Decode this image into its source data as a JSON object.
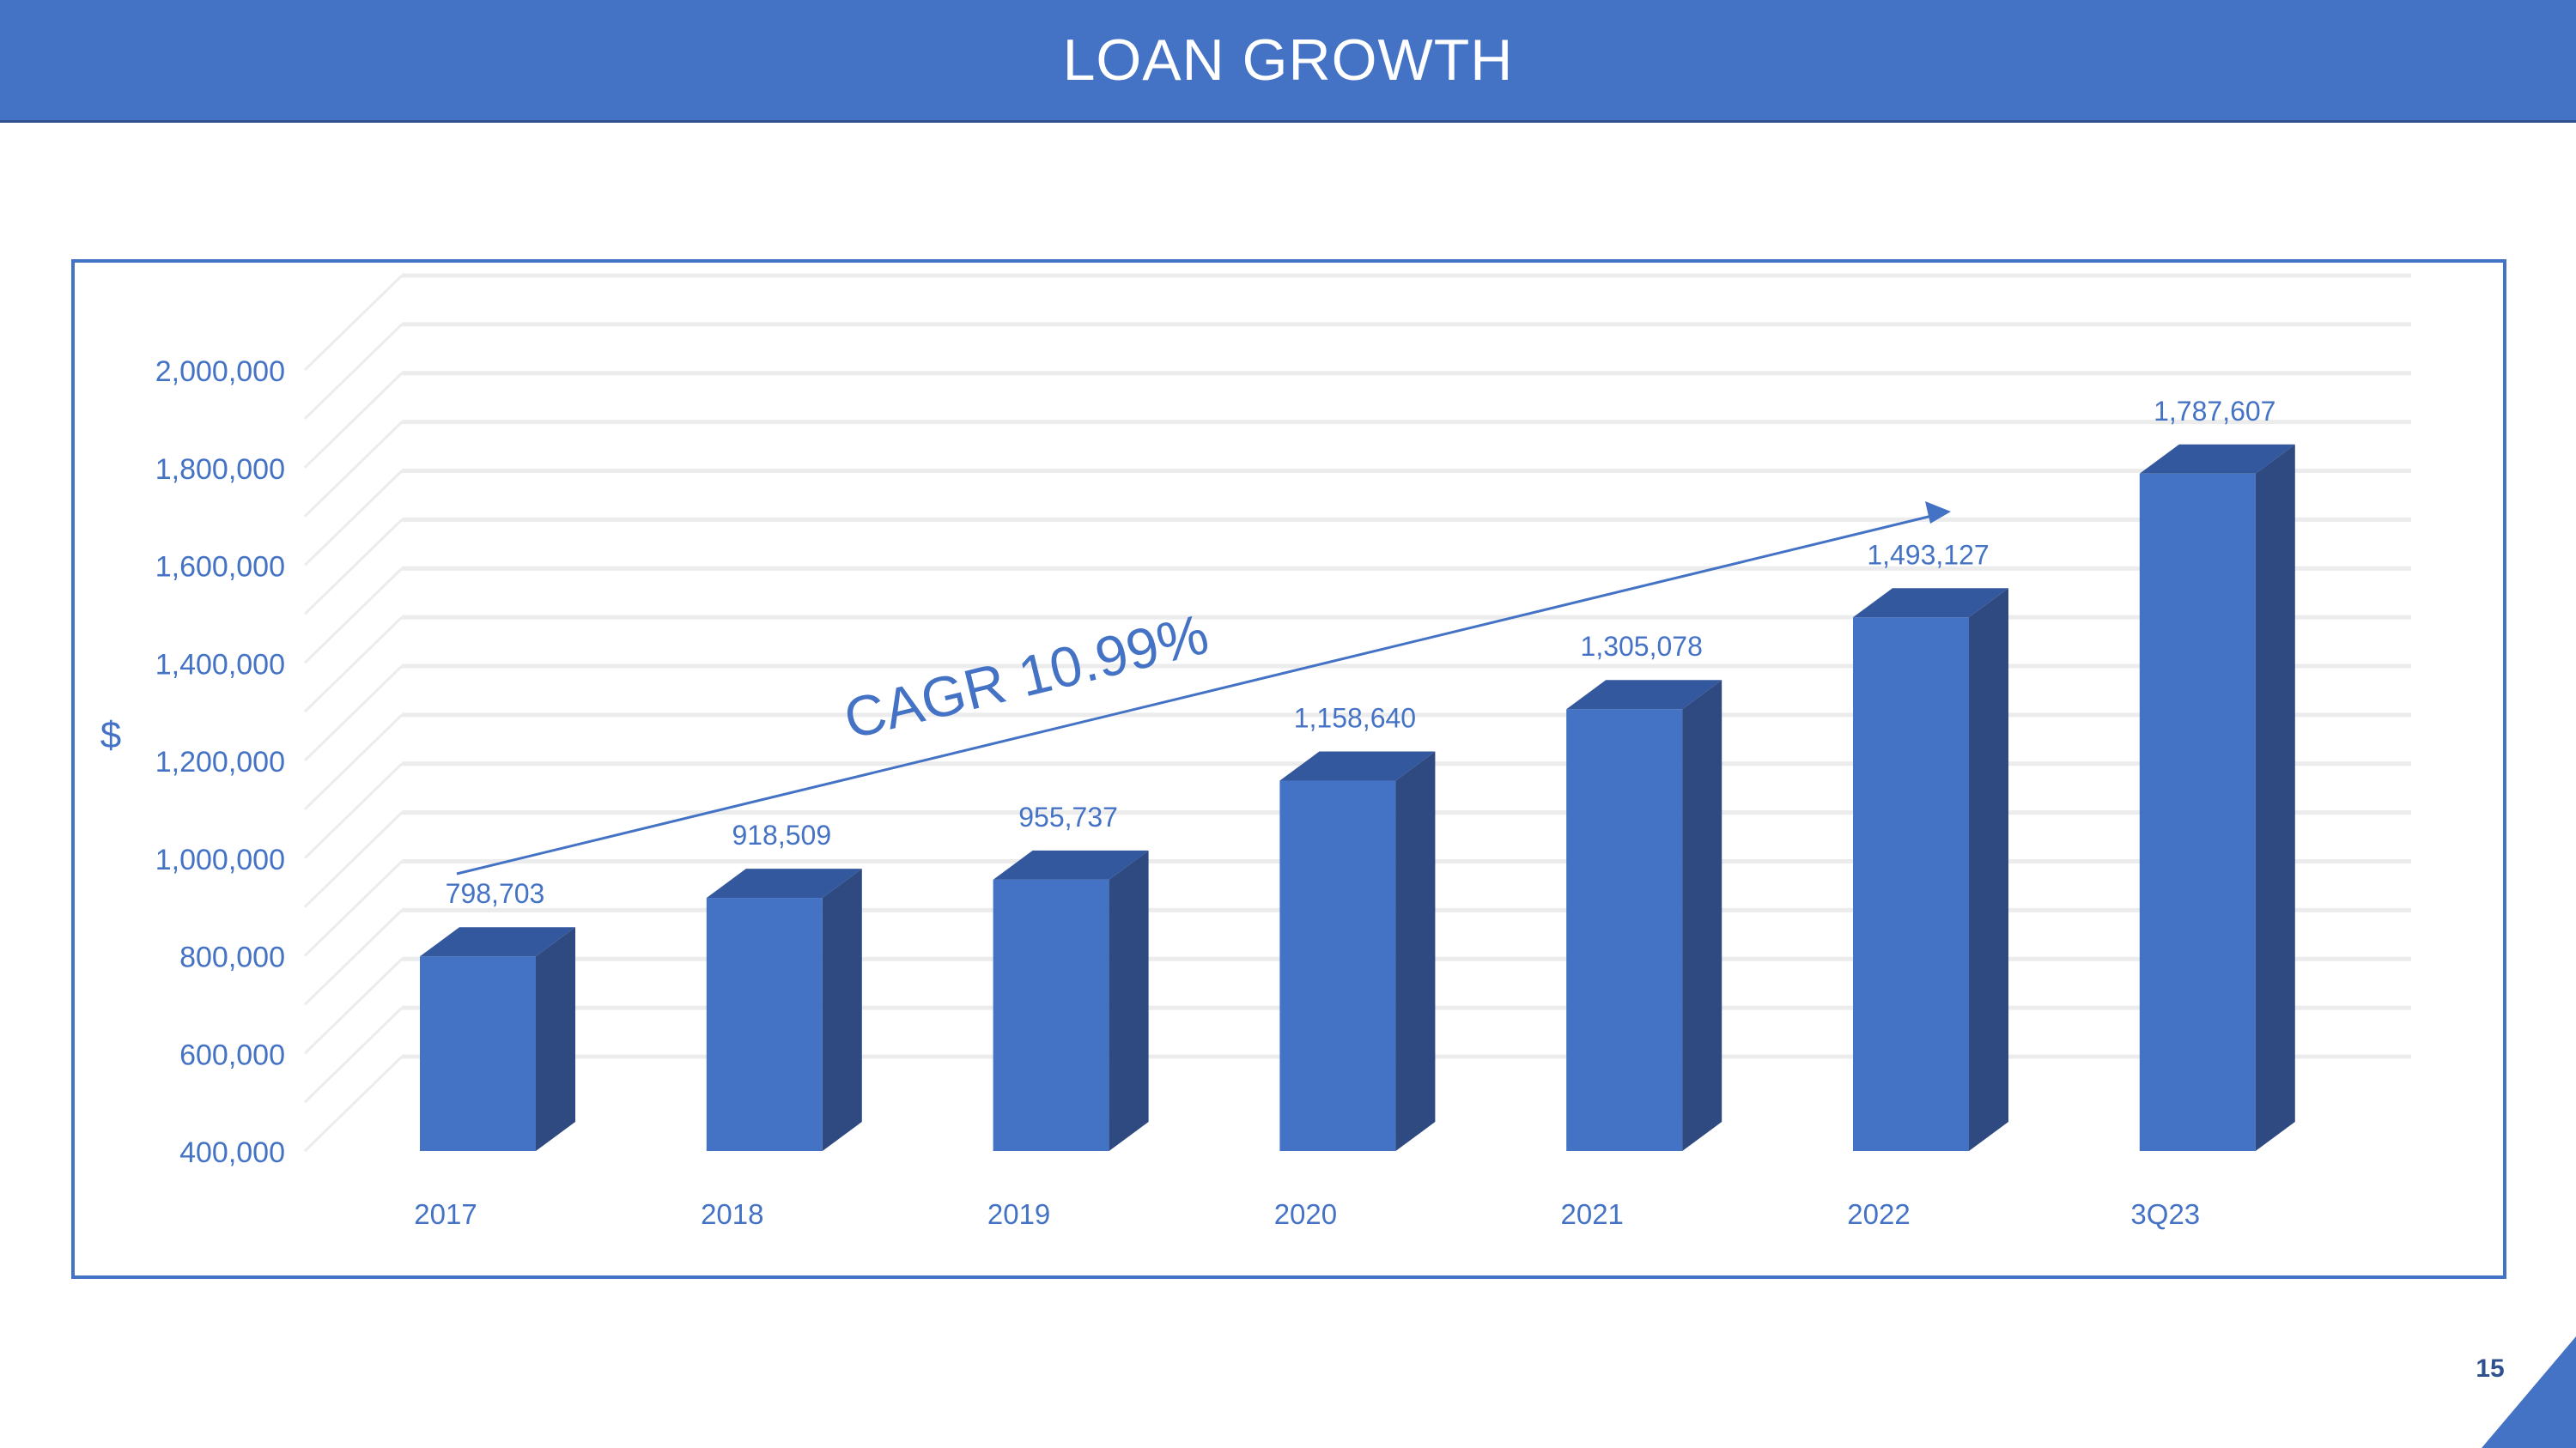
{
  "slide": {
    "title": "LOAN GROWTH",
    "page_number": "15"
  },
  "colors": {
    "banner": "#4472c4",
    "bar_front": "#4472c4",
    "bar_side": "#2f4a80",
    "bar_top": "#34589e",
    "text": "#4472c4",
    "gridline": "#ececec"
  },
  "chart_data": {
    "type": "bar",
    "style": "3d-column",
    "categories": [
      "2017",
      "2018",
      "2019",
      "2020",
      "2021",
      "2022",
      "3Q23"
    ],
    "values": [
      798703,
      918509,
      955737,
      1158640,
      1305078,
      1493127,
      1787607
    ],
    "data_labels": [
      "798,703",
      "918,509",
      "955,737",
      "1,158,640",
      "1,305,078",
      "1,493,127",
      "1,787,607"
    ],
    "ylabel": "$",
    "ylim": [
      400000,
      2000000
    ],
    "yticks": [
      "400,000",
      "600,000",
      "800,000",
      "1,000,000",
      "1,200,000",
      "1,400,000",
      "1,600,000",
      "1,800,000",
      "2,000,000"
    ],
    "grid": true,
    "annotation": "CAGR 10.99%"
  }
}
